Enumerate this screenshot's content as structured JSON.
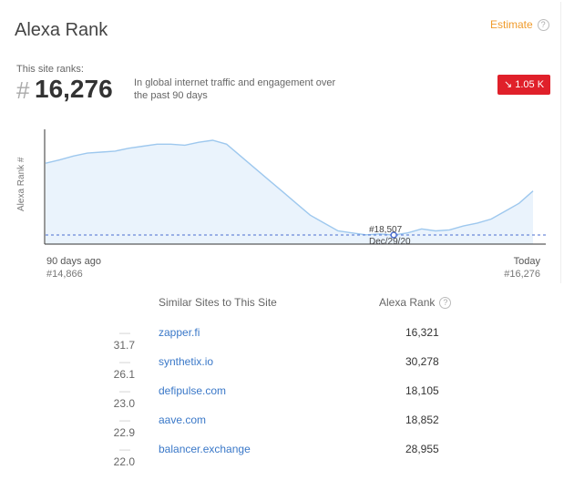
{
  "header": {
    "title": "Alexa Rank",
    "estimate_label": "Estimate",
    "help_glyph": "?"
  },
  "rank": {
    "ranks_label": "This site ranks:",
    "hash": "#",
    "value": "16,276",
    "description": "In global internet traffic and engagement over the past 90 days",
    "delta": "1.05 K",
    "delta_color": "#e0202a"
  },
  "chart": {
    "ylabel": "Alexa Rank #",
    "start_label": "90 days ago",
    "start_value": "#14,866",
    "end_label": "Today",
    "end_value": "#16,276",
    "point_rank": "#18,507",
    "point_date": "Dec/29/20"
  },
  "chart_data": {
    "type": "area",
    "ylabel": "Alexa Rank #",
    "series": [
      {
        "values": [
          14866,
          14700,
          14500,
          14350,
          14300,
          14250,
          14100,
          14000,
          13900,
          13900,
          13950,
          13800,
          13700,
          13900,
          14500,
          15100,
          15700,
          16300,
          16900,
          17500,
          17900,
          18300,
          18400,
          18500,
          18450,
          18507,
          18400,
          18200,
          18300,
          18250,
          18050,
          17900,
          17700,
          17300,
          16900,
          16276
        ]
      }
    ],
    "marker": {
      "rank": 18507,
      "date": "Dec/29/20"
    },
    "line_color": "#9ec8ee",
    "fill_color": "#eaf3fc",
    "grid": false
  },
  "similar": {
    "header_sites": "Similar Sites to This Site",
    "header_rank": "Alexa Rank",
    "rows": [
      {
        "score": "31.7",
        "site": "zapper.fi",
        "rank": "16,321"
      },
      {
        "score": "26.1",
        "site": "synthetix.io",
        "rank": "30,278"
      },
      {
        "score": "23.0",
        "site": "defipulse.com",
        "rank": "18,105"
      },
      {
        "score": "22.9",
        "site": "aave.com",
        "rank": "18,852"
      },
      {
        "score": "22.0",
        "site": "balancer.exchange",
        "rank": "28,955"
      }
    ]
  }
}
